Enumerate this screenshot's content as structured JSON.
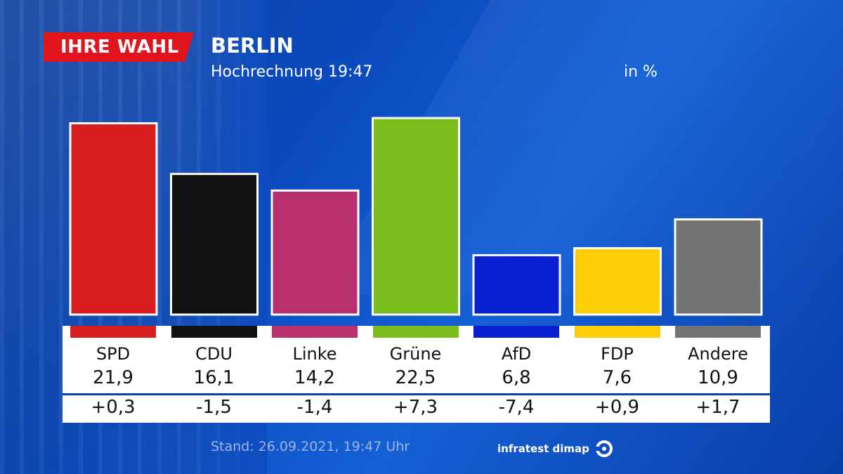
{
  "header": {
    "logo_text": "IHRE WAHL",
    "title": "BERLIN",
    "subtitle": "Hochrechnung 19:47",
    "unit": "in %"
  },
  "chart_data": {
    "type": "bar",
    "title": "BERLIN",
    "subtitle": "Hochrechnung 19:47",
    "ylabel": "in %",
    "ylim": [
      0,
      25
    ],
    "categories": [
      "SPD",
      "CDU",
      "Linke",
      "Grüne",
      "AfD",
      "FDP",
      "Andere"
    ],
    "values": [
      21.9,
      16.1,
      14.2,
      22.5,
      6.8,
      7.6,
      10.9
    ],
    "value_labels": [
      "21,9",
      "16,1",
      "14,2",
      "22,5",
      "6,8",
      "7,6",
      "10,9"
    ],
    "changes": [
      "+0,3",
      "-1,5",
      "-1,4",
      "+7,3",
      "-7,4",
      "+0,9",
      "+1,7"
    ],
    "colors": [
      "#d81e1e",
      "#111111",
      "#b8306e",
      "#7bbd1c",
      "#0a1fd0",
      "#fdcd07",
      "#737373"
    ]
  },
  "footer": {
    "stand": "Stand: 26.09.2021, 19:47 Uhr",
    "source": "infratest dimap",
    "source_icon": "infratest-dimap-logo-icon"
  }
}
